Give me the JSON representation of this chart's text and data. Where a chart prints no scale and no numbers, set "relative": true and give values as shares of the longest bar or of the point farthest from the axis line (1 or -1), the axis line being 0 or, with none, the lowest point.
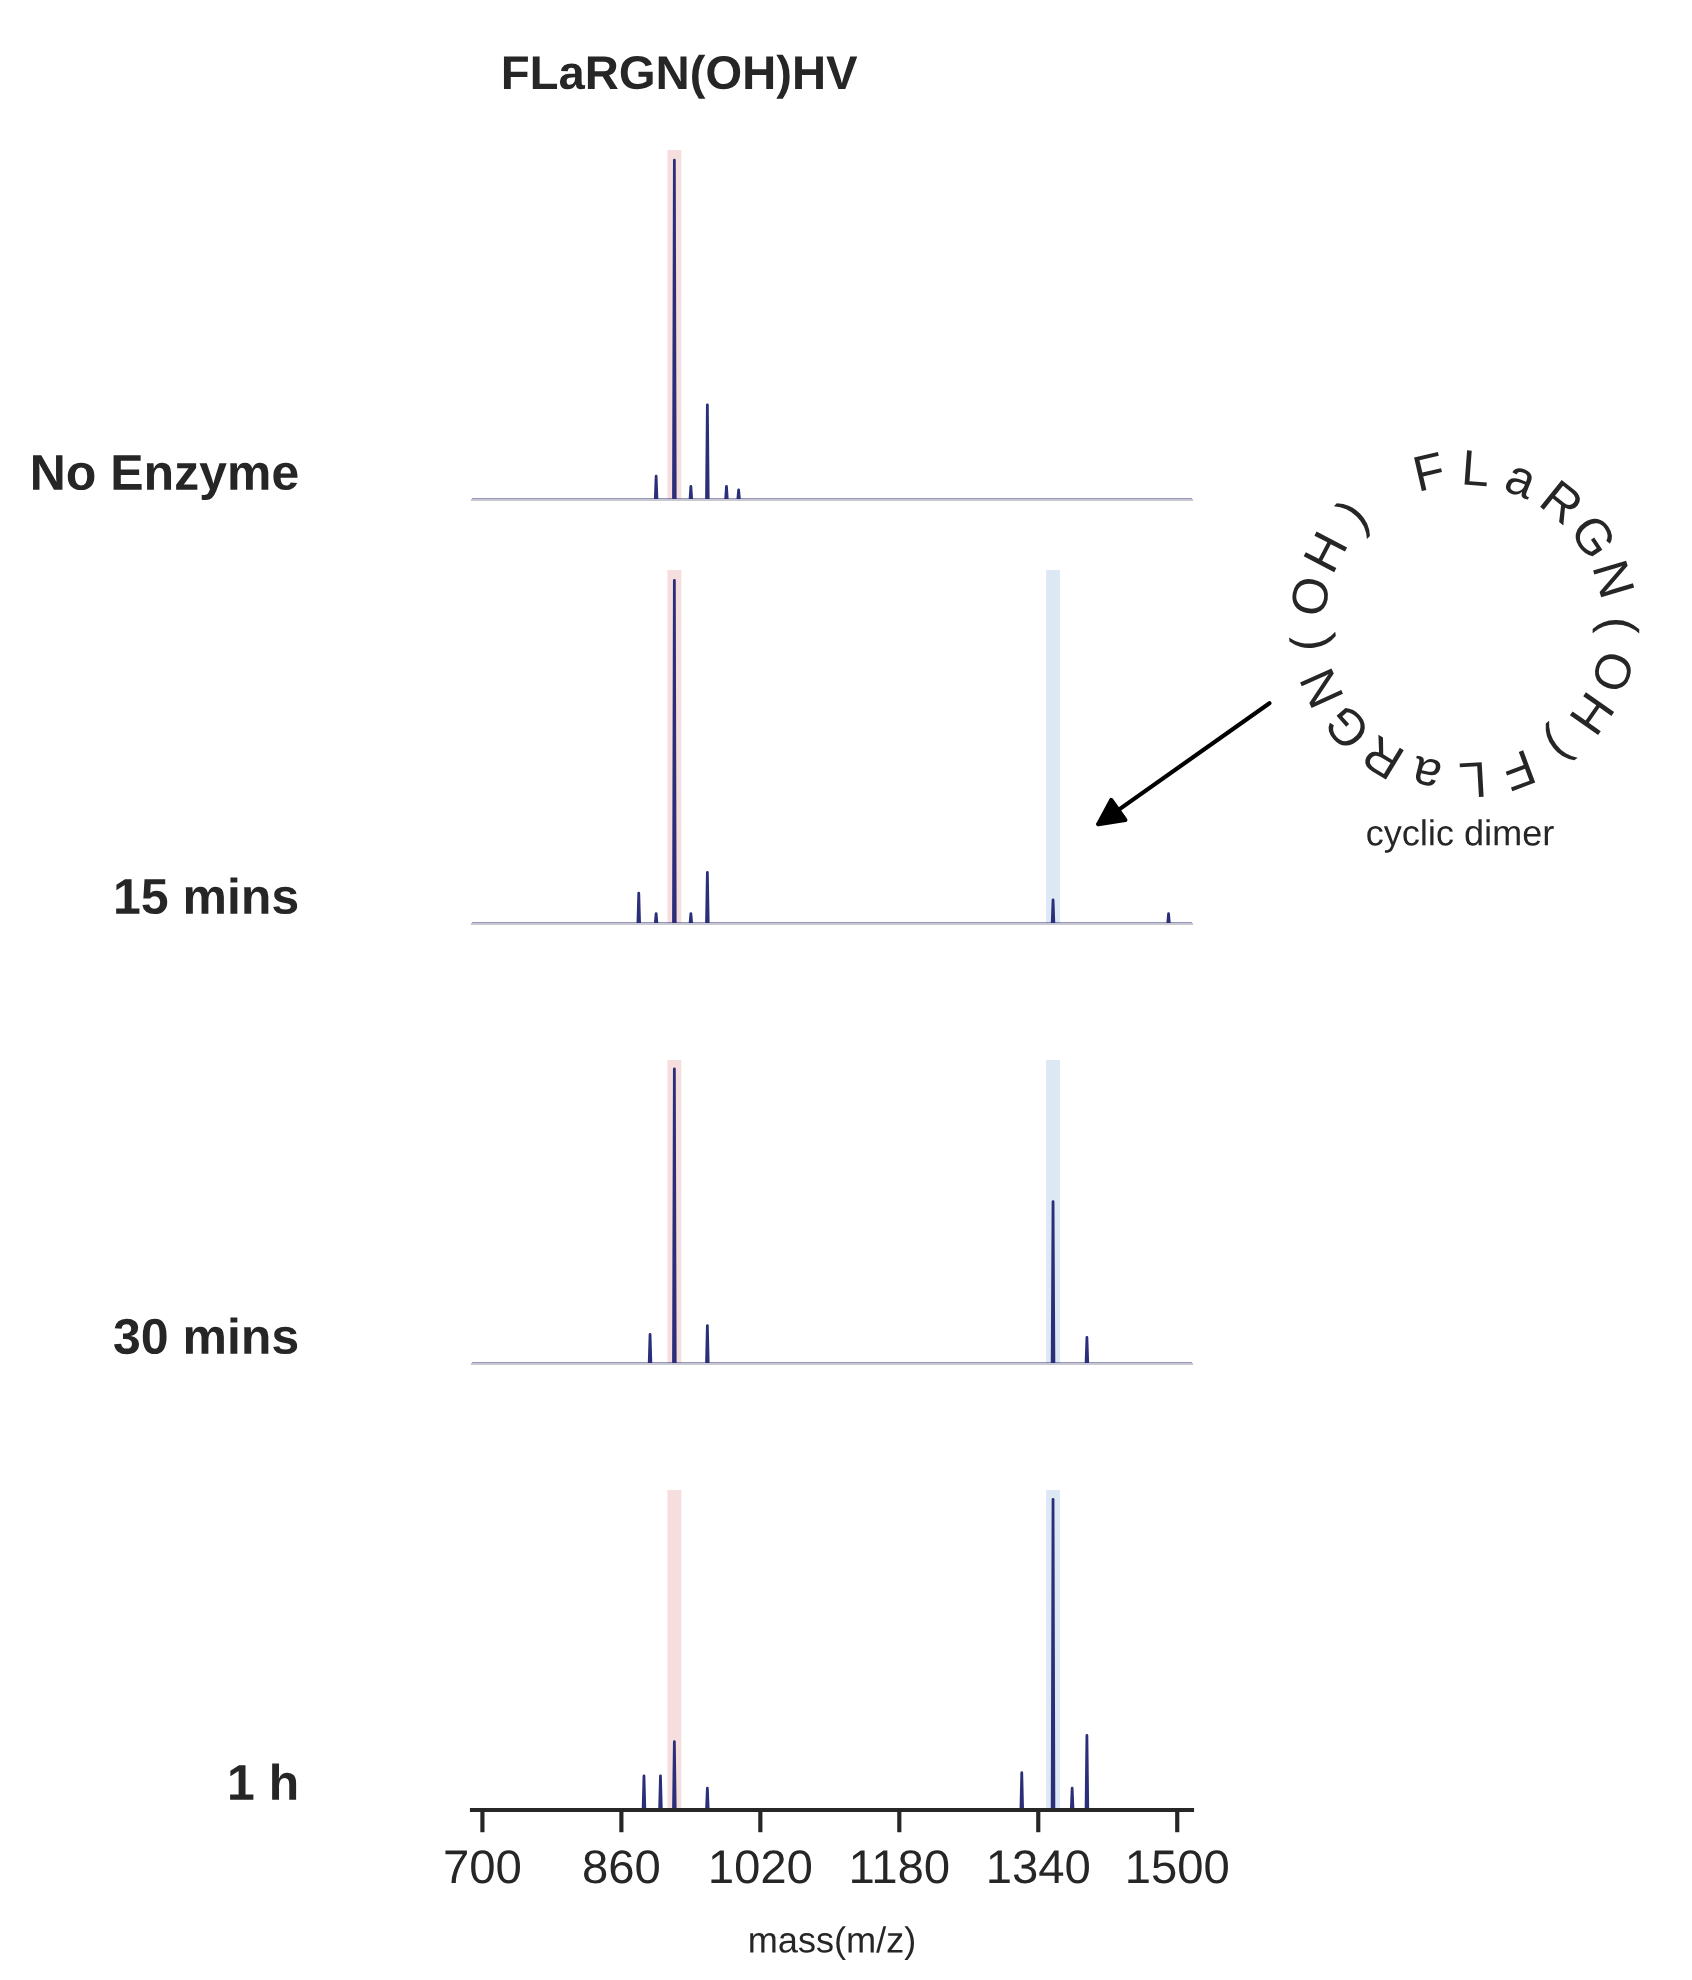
{
  "chart_data": [
    {
      "type": "line",
      "title": "FLaRGN(OH)HV",
      "ylabel": "No Enzyme",
      "relative": true,
      "xlim": [
        688,
        1517
      ],
      "tick_labels": false,
      "grid": false,
      "legend": false,
      "series": [
        {
          "color": "#2b2f7a",
          "x": [
            688,
            899,
            900,
            901,
            920,
            921,
            922,
            939,
            940,
            941,
            958,
            959,
            960,
            980,
            981,
            982,
            994,
            995,
            996,
            1517
          ],
          "values": [
            0,
            0,
            0.07,
            0,
            0,
            1,
            0,
            0,
            0.04,
            0,
            0,
            0.28,
            0,
            0,
            0.04,
            0,
            0,
            0.03,
            0,
            0
          ]
        }
      ],
      "bands": [
        {
          "axis": "x",
          "from": 913,
          "to": 929,
          "color": "#f6dede"
        }
      ]
    },
    {
      "type": "line",
      "ylabel": "15 mins",
      "relative": true,
      "xlim": [
        688,
        1517
      ],
      "tick_labels": false,
      "grid": false,
      "legend": false,
      "series": [
        {
          "color": "#2b2f7a",
          "x": [
            688,
            879,
            880,
            881,
            899,
            900,
            901,
            920,
            921,
            922,
            939,
            940,
            941,
            958,
            959,
            960,
            1356,
            1357,
            1358,
            1489,
            1490,
            1491,
            1517
          ],
          "values": [
            0,
            0,
            0.09,
            0,
            0,
            0.03,
            0,
            0,
            1,
            0,
            0,
            0.03,
            0,
            0,
            0.15,
            0,
            0,
            0.07,
            0,
            0,
            0.03,
            0,
            0
          ]
        }
      ],
      "bands": [
        {
          "axis": "x",
          "from": 913,
          "to": 929,
          "color": "#f6dede"
        },
        {
          "axis": "x",
          "from": 1349,
          "to": 1365,
          "color": "#dde8f5"
        }
      ],
      "annotations": [
        "FLaRGN(OH)FLaRGN(OH)",
        "cyclic dimer"
      ]
    },
    {
      "type": "line",
      "ylabel": "30 mins",
      "relative": true,
      "xlim": [
        688,
        1517
      ],
      "tick_labels": false,
      "grid": false,
      "legend": false,
      "series": [
        {
          "color": "#2b2f7a",
          "x": [
            688,
            892,
            893,
            894,
            920,
            921,
            922,
            958,
            959,
            960,
            1356,
            1357,
            1358,
            1395,
            1396,
            1397,
            1517
          ],
          "values": [
            0,
            0,
            0.1,
            0,
            0,
            1,
            0,
            0,
            0.13,
            0,
            0,
            0.55,
            0,
            0,
            0.09,
            0,
            0
          ]
        }
      ],
      "bands": [
        {
          "axis": "x",
          "from": 913,
          "to": 929,
          "color": "#f6dede"
        },
        {
          "axis": "x",
          "from": 1349,
          "to": 1365,
          "color": "#dde8f5"
        }
      ]
    },
    {
      "type": "line",
      "ylabel": "1 h",
      "xlabel": "mass(m/z)",
      "relative": true,
      "xlim": [
        688,
        1517
      ],
      "xticks": [
        700,
        860,
        1020,
        1180,
        1340,
        1500
      ],
      "tick_labels": "x",
      "grid": false,
      "legend": false,
      "series": [
        {
          "color": "#2b2f7a",
          "x": [
            688,
            885,
            886,
            887,
            904,
            905,
            906,
            920,
            921,
            922,
            958,
            959,
            960,
            1320,
            1321,
            1322,
            1356,
            1357,
            1358,
            1378,
            1379,
            1380,
            1395,
            1396,
            1397,
            1517
          ],
          "values": [
            0,
            0,
            0.11,
            0,
            0,
            0.11,
            0,
            0,
            0.22,
            0,
            0,
            0.07,
            0,
            0,
            0.12,
            0,
            0,
            1,
            0,
            0,
            0.07,
            0,
            0,
            0.24,
            0,
            0
          ]
        }
      ],
      "bands": [
        {
          "axis": "x",
          "from": 913,
          "to": 929,
          "color": "#f6dede"
        },
        {
          "axis": "x",
          "from": 1349,
          "to": 1365,
          "color": "#dde8f5"
        }
      ]
    }
  ]
}
